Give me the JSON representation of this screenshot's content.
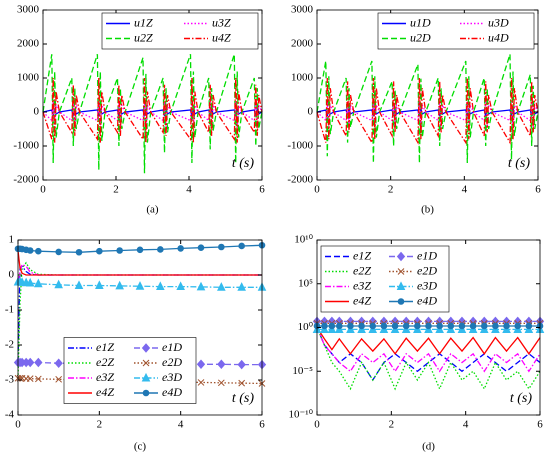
{
  "chart_data": [
    {
      "type": "line",
      "caption": "(a)",
      "xlabel": "t (s)",
      "legend": "upper right",
      "xlim": [
        0,
        6
      ],
      "xticks": [
        0,
        2,
        4,
        6
      ],
      "ylim": [
        -2000,
        3000
      ],
      "yticks": [
        -2000,
        -1000,
        0,
        1000,
        2000,
        3000
      ],
      "x": [
        0,
        0.24,
        0.28,
        0.32,
        0.36,
        0.45,
        0.79,
        0.83,
        0.87,
        0.91,
        1.0,
        1.49,
        1.53,
        1.57,
        1.61,
        1.7,
        2.04,
        2.08,
        2.12,
        2.16,
        2.25,
        2.74,
        2.78,
        2.82,
        2.86,
        2.95,
        3.29,
        3.33,
        3.37,
        3.41,
        3.5,
        4.04,
        4.08,
        4.12,
        4.16,
        4.25,
        4.54,
        4.58,
        4.62,
        4.66,
        4.75,
        5.24,
        5.28,
        5.32,
        5.36,
        5.45,
        5.79,
        5.83,
        5.87,
        5.91,
        6
      ],
      "series": [
        {
          "name": "u1Z",
          "color": "#0000ff",
          "style": "solid",
          "values": [
            0,
            60,
            -120,
            100,
            -60,
            0,
            60,
            -120,
            100,
            -60,
            0,
            60,
            -120,
            100,
            -60,
            0,
            60,
            -120,
            100,
            -60,
            0,
            60,
            -120,
            100,
            -60,
            0,
            60,
            -120,
            100,
            -60,
            0,
            60,
            -120,
            100,
            -60,
            0,
            60,
            -120,
            100,
            -60,
            0,
            60,
            -120,
            100,
            -60,
            0,
            60,
            -120,
            100,
            -60,
            0
          ]
        },
        {
          "name": "u2Z",
          "color": "#00dd00",
          "style": "dashed",
          "values": [
            0,
            1700,
            -1500,
            1190,
            -750,
            0,
            1000,
            -1000,
            700,
            -500,
            0,
            1700,
            -1700,
            1190,
            -850,
            0,
            1000,
            -1000,
            700,
            -500,
            0,
            1600,
            -1800,
            1120,
            -900,
            0,
            1000,
            -1200,
            700,
            -600,
            0,
            1700,
            -1500,
            1190,
            -750,
            0,
            1000,
            -1100,
            700,
            -550,
            0,
            1700,
            -1500,
            1190,
            -750,
            0,
            1000,
            -1000,
            700,
            -500,
            0
          ]
        },
        {
          "name": "u3Z",
          "color": "#ff00ff",
          "style": "dotted",
          "values": [
            0,
            -250,
            300,
            -450,
            200,
            0,
            -250,
            300,
            -450,
            200,
            0,
            -250,
            300,
            -450,
            200,
            0,
            -250,
            300,
            -450,
            200,
            0,
            -250,
            300,
            -450,
            200,
            0,
            -250,
            300,
            -450,
            200,
            0,
            -250,
            300,
            -450,
            200,
            0,
            -250,
            300,
            -450,
            200,
            0,
            -250,
            300,
            -450,
            200,
            0,
            -250,
            300,
            -450,
            200,
            0
          ]
        },
        {
          "name": "u4Z",
          "color": "#ff0000",
          "style": "dashdot",
          "values": [
            0,
            -800,
            1000,
            -900,
            600,
            0,
            -600,
            800,
            -700,
            500,
            0,
            -800,
            1000,
            -900,
            600,
            0,
            -600,
            800,
            -700,
            500,
            0,
            -800,
            1000,
            -900,
            600,
            0,
            -600,
            800,
            -700,
            500,
            0,
            -800,
            1000,
            -900,
            600,
            0,
            -600,
            800,
            -700,
            500,
            0,
            -800,
            1000,
            -900,
            600,
            0,
            -600,
            800,
            -700,
            500,
            0
          ]
        }
      ]
    },
    {
      "type": "line",
      "caption": "(b)",
      "xlabel": "t (s)",
      "legend": "upper right",
      "xlim": [
        0,
        6
      ],
      "xticks": [
        0,
        2,
        4,
        6
      ],
      "ylim": [
        -2000,
        3000
      ],
      "yticks": [
        -2000,
        -1000,
        0,
        1000,
        2000,
        3000
      ],
      "x": [
        0,
        0.24,
        0.28,
        0.32,
        0.36,
        0.45,
        0.79,
        0.83,
        0.87,
        0.91,
        1.0,
        1.49,
        1.53,
        1.57,
        1.61,
        1.7,
        2.04,
        2.08,
        2.12,
        2.16,
        2.25,
        2.74,
        2.78,
        2.82,
        2.86,
        2.95,
        3.29,
        3.33,
        3.37,
        3.41,
        3.5,
        4.04,
        4.08,
        4.12,
        4.16,
        4.25,
        4.54,
        4.58,
        4.62,
        4.66,
        4.75,
        5.24,
        5.28,
        5.32,
        5.36,
        5.45,
        5.79,
        5.83,
        5.87,
        5.91,
        6
      ],
      "series": [
        {
          "name": "u1D",
          "color": "#0000ff",
          "style": "solid",
          "values": [
            0,
            60,
            -120,
            100,
            -60,
            0,
            60,
            -120,
            100,
            -60,
            0,
            60,
            -120,
            100,
            -60,
            0,
            60,
            -120,
            100,
            -60,
            0,
            60,
            -120,
            100,
            -60,
            0,
            60,
            -120,
            100,
            -60,
            0,
            60,
            -120,
            100,
            -60,
            0,
            60,
            -120,
            100,
            -60,
            0,
            60,
            -120,
            100,
            -60,
            0,
            60,
            -120,
            100,
            -60,
            0
          ]
        },
        {
          "name": "u2D",
          "color": "#00dd00",
          "style": "dashed",
          "values": [
            0,
            1500,
            -1300,
            1050,
            -650,
            0,
            1000,
            -900,
            700,
            -450,
            0,
            1500,
            -1500,
            1050,
            -750,
            0,
            900,
            -1000,
            630,
            -500,
            0,
            1400,
            -1500,
            980,
            -750,
            0,
            1000,
            -1000,
            700,
            -500,
            0,
            1500,
            -1500,
            1050,
            -750,
            0,
            1000,
            -1000,
            700,
            -500,
            0,
            1700,
            -1400,
            1190,
            -700,
            0,
            1100,
            -1000,
            770,
            -500,
            0
          ]
        },
        {
          "name": "u3D",
          "color": "#ff00ff",
          "style": "dotted",
          "values": [
            0,
            -250,
            300,
            -450,
            200,
            0,
            -250,
            300,
            -450,
            200,
            0,
            -250,
            300,
            -450,
            200,
            0,
            -250,
            300,
            -450,
            200,
            0,
            -250,
            300,
            -450,
            200,
            0,
            -250,
            300,
            -450,
            200,
            0,
            -250,
            300,
            -450,
            200,
            0,
            -250,
            300,
            -450,
            200,
            0,
            -250,
            300,
            -450,
            200,
            0,
            -250,
            300,
            -450,
            200,
            0
          ]
        },
        {
          "name": "u4D",
          "color": "#ff0000",
          "style": "dashdot",
          "values": [
            0,
            -900,
            1000,
            -800,
            700,
            0,
            -700,
            900,
            -600,
            500,
            0,
            -900,
            1000,
            -800,
            700,
            0,
            -700,
            900,
            -600,
            500,
            0,
            -900,
            1000,
            -800,
            700,
            0,
            -700,
            900,
            -600,
            500,
            0,
            -900,
            1000,
            -800,
            700,
            0,
            -700,
            900,
            -600,
            500,
            0,
            -900,
            1000,
            -800,
            700,
            0,
            -700,
            900,
            -600,
            500,
            0
          ]
        }
      ]
    },
    {
      "type": "line",
      "caption": "(c)",
      "xlabel": "t (s)",
      "legend": "center",
      "xlim": [
        0,
        6
      ],
      "xticks": [
        0,
        2,
        4,
        6
      ],
      "ylim": [
        -4,
        1
      ],
      "yticks": [
        -4,
        -3,
        -2,
        -1,
        0,
        1
      ],
      "x": [
        0,
        0.05,
        0.1,
        0.2,
        0.3,
        0.5,
        1,
        1.5,
        2,
        2.5,
        3,
        3.5,
        4,
        4.5,
        5,
        5.5,
        6
      ],
      "series": [
        {
          "name": "e1Z",
          "color": "#0000ff",
          "style": "dashdot",
          "values": [
            -2.5,
            0.2,
            0.25,
            0.1,
            0.02,
            0,
            0,
            0,
            0,
            0,
            0,
            0,
            0,
            0,
            0,
            0,
            0
          ]
        },
        {
          "name": "e2Z",
          "color": "#00dd00",
          "style": "dotted",
          "values": [
            -2.95,
            -0.8,
            0.2,
            0.35,
            0.15,
            0.02,
            0,
            0,
            0,
            0,
            0,
            0,
            0,
            0,
            0,
            0,
            0
          ]
        },
        {
          "name": "e3Z",
          "color": "#ff00ff",
          "style": "dashdot",
          "values": [
            -0.2,
            0.1,
            0.3,
            0.25,
            0.08,
            0,
            0,
            0,
            0,
            0,
            0,
            0,
            0,
            0,
            0,
            0,
            0
          ]
        },
        {
          "name": "e4Z",
          "color": "#ff0000",
          "style": "solid",
          "values": [
            0.7,
            0.2,
            0.05,
            0,
            0,
            0,
            0,
            0,
            0,
            0,
            0,
            0,
            0,
            0,
            0,
            0,
            0
          ]
        },
        {
          "name": "e1D",
          "color": "#7b68ee",
          "style": "dashed",
          "marker": "diamond",
          "values": [
            -2.5,
            -2.5,
            -2.5,
            -2.5,
            -2.5,
            -2.5,
            -2.52,
            -2.52,
            -2.53,
            -2.53,
            -2.54,
            -2.54,
            -2.55,
            -2.55,
            -2.55,
            -2.56,
            -2.56
          ]
        },
        {
          "name": "e2D",
          "color": "#a0522d",
          "style": "dotted",
          "marker": "x",
          "values": [
            -2.95,
            -2.95,
            -2.95,
            -2.96,
            -2.96,
            -2.97,
            -2.98,
            -3.0,
            -3.01,
            -3.02,
            -3.03,
            -3.05,
            -3.06,
            -3.07,
            -3.08,
            -3.09,
            -3.1
          ]
        },
        {
          "name": "e3D",
          "color": "#33bbee",
          "style": "dashdot",
          "marker": "triangle",
          "values": [
            -0.2,
            -0.2,
            -0.21,
            -0.22,
            -0.23,
            -0.25,
            -0.28,
            -0.3,
            -0.3,
            -0.31,
            -0.32,
            -0.33,
            -0.33,
            -0.34,
            -0.35,
            -0.35,
            -0.35
          ]
        },
        {
          "name": "e4D",
          "color": "#1f77b4",
          "style": "solid",
          "marker": "circle",
          "values": [
            0.75,
            0.75,
            0.74,
            0.72,
            0.7,
            0.68,
            0.66,
            0.65,
            0.68,
            0.7,
            0.72,
            0.73,
            0.76,
            0.78,
            0.8,
            0.83,
            0.85
          ]
        }
      ]
    },
    {
      "type": "line",
      "caption": "(d)",
      "xlabel": "t (s)",
      "legend": "upper left",
      "log_y": true,
      "xlim": [
        0,
        6
      ],
      "xticks": [
        0,
        2,
        4,
        6
      ],
      "ylim": [
        1e-10,
        10000000000.0
      ],
      "yticks": [
        {
          "value": 1e-10,
          "label": "10⁻¹⁰"
        },
        {
          "value": 1e-05,
          "label": "10⁻⁵"
        },
        {
          "value": 1,
          "label": "10⁰"
        },
        {
          "value": 100000,
          "label": "10⁵"
        },
        {
          "value": 10000000000,
          "label": "10¹⁰"
        }
      ],
      "x": [
        0,
        0.2,
        0.4,
        0.6,
        0.9,
        1.2,
        1.5,
        1.8,
        2.1,
        2.4,
        2.7,
        3,
        3.3,
        3.6,
        3.9,
        4.2,
        4.5,
        4.8,
        5.1,
        5.4,
        5.7,
        6
      ],
      "series": [
        {
          "name": "e1Z",
          "color": "#0000ff",
          "style": "dashed",
          "values": [
            1,
            0.01,
            0.001,
            0.0001,
            0.001,
            0.0001,
            1e-06,
            0.0001,
            0.001,
            0.0001,
            1e-05,
            0.0001,
            0.001,
            0.0001,
            1e-05,
            0.0001,
            0.001,
            0.0001,
            1e-05,
            0.0001,
            0.001,
            0.0001
          ]
        },
        {
          "name": "e2Z",
          "color": "#00dd00",
          "style": "dotted",
          "values": [
            1,
            0.01,
            0.0001,
            1e-05,
            1e-07,
            0.0001,
            1e-06,
            0.0001,
            1e-07,
            0.0001,
            1e-06,
            0.0001,
            1e-07,
            0.0001,
            1e-06,
            1e-05,
            1e-07,
            0.0001,
            1e-06,
            1e-05,
            1e-07,
            1e-05
          ]
        },
        {
          "name": "e3Z",
          "color": "#ff00ff",
          "style": "dashdot",
          "values": [
            1,
            0.01,
            0.001,
            0.0001,
            1e-05,
            0.001,
            0.0001,
            0.001,
            1e-05,
            0.001,
            0.0001,
            0.001,
            1e-05,
            0.001,
            0.0001,
            0.001,
            1e-05,
            0.001,
            0.0001,
            0.001,
            1e-05,
            0.001
          ]
        },
        {
          "name": "e4Z",
          "color": "#ff0000",
          "style": "solid",
          "values": [
            1,
            0.05,
            0.003,
            0.05,
            0.001,
            0.05,
            0.002,
            0.05,
            0.001,
            0.06,
            0.002,
            0.06,
            0.001,
            0.06,
            0.002,
            0.07,
            0.001,
            0.07,
            0.002,
            0.07,
            0.001,
            0.07
          ]
        },
        {
          "name": "e1D",
          "color": "#7b68ee",
          "style": "dashed",
          "marker": "diamond",
          "values": [
            5,
            5,
            5,
            5,
            5,
            5,
            5,
            5,
            5,
            5,
            5,
            5,
            5,
            5,
            5,
            5,
            5,
            5,
            5,
            5,
            5,
            5
          ]
        },
        {
          "name": "e2D",
          "color": "#a0522d",
          "style": "dotted",
          "marker": "x",
          "values": [
            3,
            3,
            3,
            3,
            3,
            3,
            3,
            3,
            3,
            3,
            3,
            3,
            3,
            3,
            3,
            3,
            3,
            3,
            3,
            3,
            3,
            3
          ]
        },
        {
          "name": "e3D",
          "color": "#33bbee",
          "style": "dashdot",
          "marker": "triangle",
          "values": [
            0.6,
            0.6,
            0.6,
            0.6,
            0.6,
            0.6,
            0.6,
            0.6,
            0.6,
            0.6,
            0.6,
            0.6,
            0.6,
            0.6,
            0.6,
            0.6,
            0.6,
            0.6,
            0.6,
            0.6,
            0.6,
            0.6
          ]
        },
        {
          "name": "e4D",
          "color": "#1f77b4",
          "style": "solid",
          "marker": "circle",
          "values": [
            1.5,
            1.5,
            1.5,
            1.5,
            1.5,
            1.5,
            1.5,
            1.5,
            1.5,
            1.5,
            1.5,
            1.5,
            1.5,
            1.5,
            1.5,
            1.5,
            1.5,
            1.5,
            1.5,
            1.5,
            1.5,
            1.5
          ]
        }
      ]
    }
  ]
}
